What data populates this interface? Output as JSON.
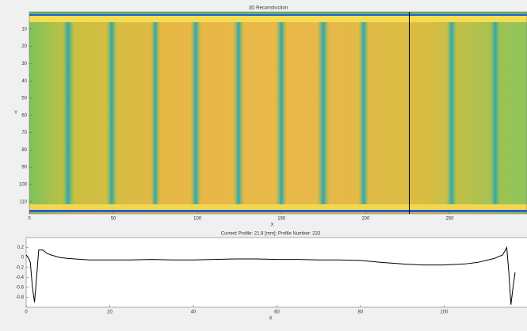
{
  "chart_data": [
    {
      "type": "heatmap",
      "title": "3D Reconstruction",
      "x_label": "X",
      "y_label": "Y",
      "xlim": [
        0,
        296
      ],
      "xticks": [
        0,
        50,
        100,
        150,
        200,
        250
      ],
      "ylim": [
        0,
        117
      ],
      "yticks": [
        10,
        20,
        30,
        40,
        50,
        60,
        70,
        80,
        90,
        100,
        110
      ],
      "y_reversed": true,
      "colormap": "parula",
      "profile_x": 226,
      "profile_color": "#000000"
    },
    {
      "type": "line",
      "title": "Current Profile: 21.8 [mm];  Profile Number: 233",
      "x_label": "X",
      "x": [
        0,
        0.5,
        1,
        1.5,
        2,
        2.5,
        3,
        4,
        5,
        6,
        8,
        10,
        15,
        20,
        25,
        30,
        35,
        40,
        45,
        50,
        55,
        60,
        65,
        70,
        75,
        80,
        85,
        90,
        95,
        100,
        105,
        108,
        112,
        114,
        115,
        115.5,
        116,
        116.5,
        117
      ],
      "y": [
        0.05,
        0,
        -0.1,
        -0.6,
        -0.9,
        -0.4,
        0.15,
        0.15,
        0.08,
        0.05,
        0,
        -0.02,
        -0.05,
        -0.05,
        -0.05,
        -0.04,
        -0.05,
        -0.05,
        -0.04,
        -0.03,
        -0.03,
        -0.04,
        -0.04,
        -0.05,
        -0.05,
        -0.06,
        -0.1,
        -0.13,
        -0.15,
        -0.15,
        -0.13,
        -0.1,
        -0.02,
        0.05,
        0.2,
        -0.3,
        -0.95,
        -0.6,
        -0.3
      ],
      "color": "#000000",
      "xlim": [
        0,
        117
      ],
      "xticks": [
        0,
        20,
        40,
        60,
        80,
        100
      ],
      "ylim": [
        -1,
        0.4
      ],
      "yticks": [
        0.2,
        0,
        -0.2,
        -0.4,
        -0.6,
        -0.8
      ]
    }
  ]
}
